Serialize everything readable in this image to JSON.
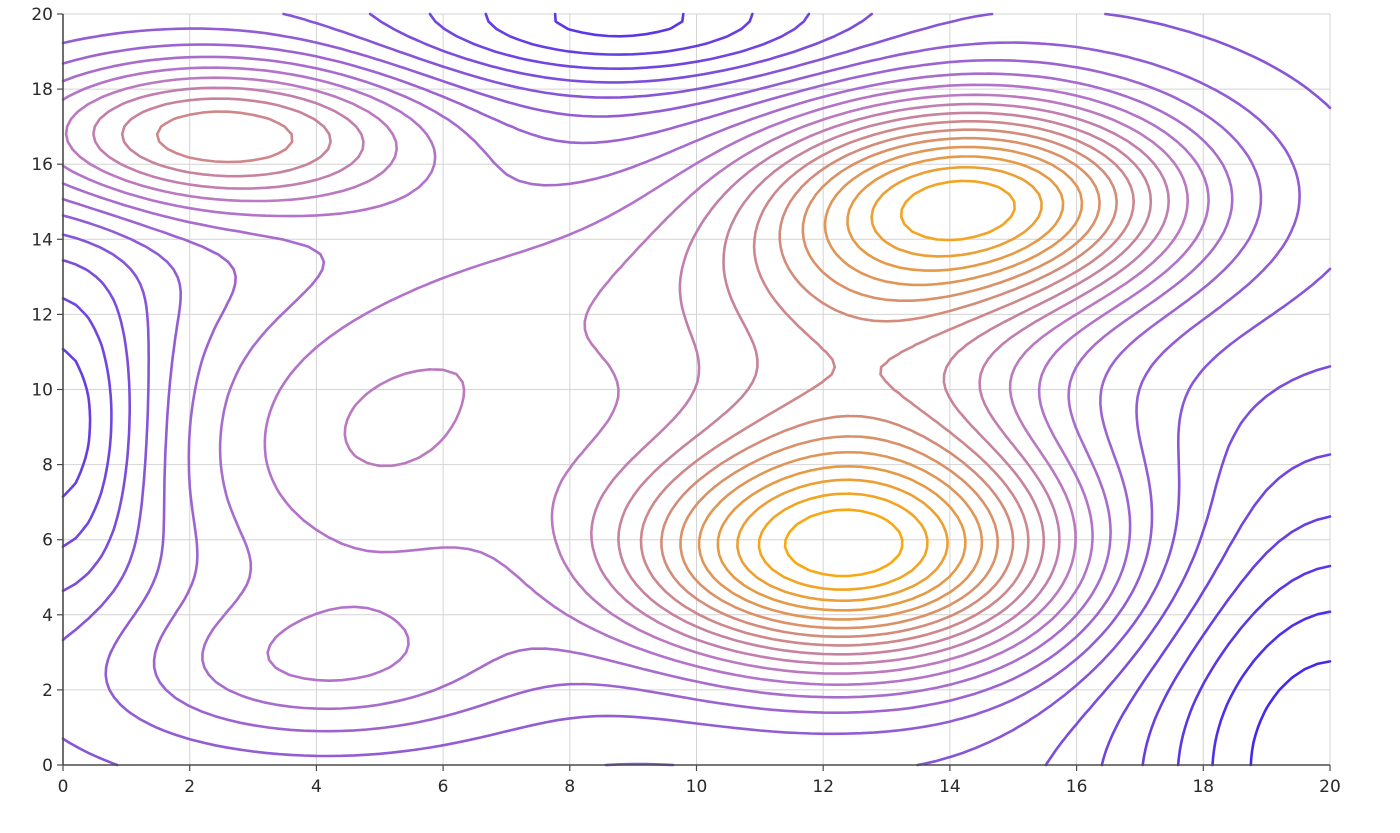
{
  "chart_data": {
    "type": "contour",
    "title": "",
    "xlabel": "",
    "ylabel": "",
    "xlim": [
      0,
      20
    ],
    "ylim": [
      0,
      20
    ],
    "x_ticks": [
      0,
      2,
      4,
      6,
      8,
      10,
      12,
      14,
      16,
      18,
      20
    ],
    "y_ticks": [
      0,
      2,
      4,
      6,
      8,
      10,
      12,
      14,
      16,
      18,
      20
    ],
    "grid": true,
    "legend": "none",
    "colormap": {
      "low": "#3b1ff0",
      "mid": "#b877c8",
      "high": "#ffad00"
    },
    "peaks": [
      {
        "name": "peak-1",
        "center": [
          12.3,
          5.6
        ],
        "level": "highest"
      },
      {
        "name": "peak-2",
        "center": [
          14.5,
          15.1
        ],
        "level": "high"
      },
      {
        "name": "peak-3",
        "center": [
          2.4,
          16.8
        ],
        "level": "medium"
      }
    ],
    "lows": [
      {
        "center": [
          8.8,
          19.8
        ]
      },
      {
        "center": [
          20,
          0
        ]
      },
      {
        "center": [
          0,
          9
        ]
      }
    ],
    "contour_levels": 22
  }
}
